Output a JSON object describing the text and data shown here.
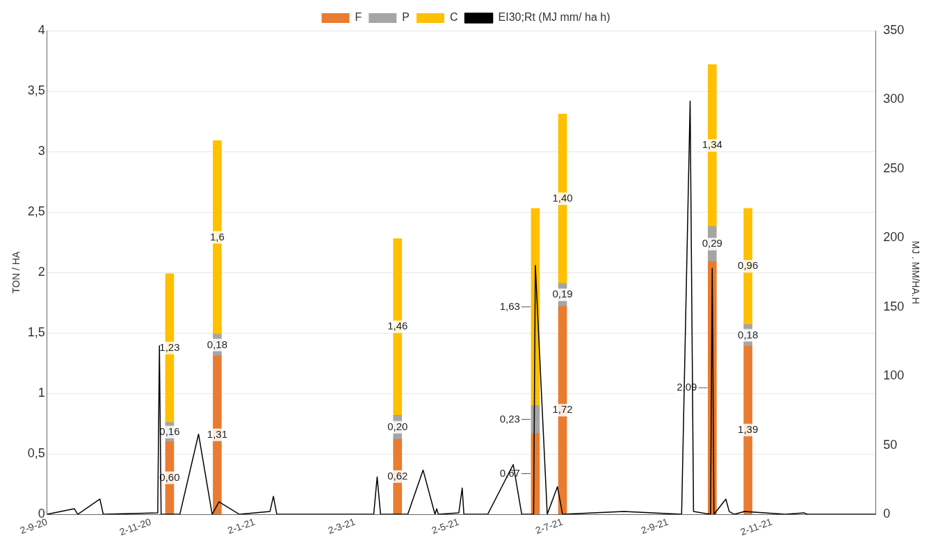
{
  "chart_data": {
    "type": "bar",
    "stacked": true,
    "xlabel": null,
    "ylabel": "TON / HA",
    "y2label": "MJ . MM/HA.H",
    "legend": "top",
    "grid": "y",
    "x": [
      "2020-11-13",
      "2020-12-11",
      "2021-03-27",
      "2021-06-16",
      "2021-07-02",
      "2021-09-28",
      "2021-10-19"
    ],
    "xlim": [
      "2020-09-02",
      "2022-01-02"
    ],
    "xticks": [
      {
        "value": "2020-09-02",
        "label": "2-9-20"
      },
      {
        "value": "2020-11-02",
        "label": "2-11-20"
      },
      {
        "value": "2021-01-02",
        "label": "2-1-21"
      },
      {
        "value": "2021-03-02",
        "label": "2-3-21"
      },
      {
        "value": "2021-05-02",
        "label": "2-5-21"
      },
      {
        "value": "2021-07-02",
        "label": "2-7-21"
      },
      {
        "value": "2021-09-02",
        "label": "2-9-21"
      },
      {
        "value": "2021-11-02",
        "label": "2-11-21"
      }
    ],
    "ylim": [
      0,
      4
    ],
    "yticks": [
      0,
      {
        "value": 0.5,
        "label": "0,5"
      },
      1,
      {
        "value": 1.5,
        "label": "1,5"
      },
      2,
      {
        "value": 2.5,
        "label": "2,5"
      },
      3,
      {
        "value": 3.5,
        "label": "3,5"
      },
      4
    ],
    "y2lim": [
      0,
      350
    ],
    "y2ticks": [
      0,
      50,
      100,
      150,
      200,
      250,
      300,
      350
    ],
    "series": [
      {
        "name": "F",
        "color": "#e97c30",
        "values": [
          0.6,
          1.31,
          0.62,
          0.67,
          1.72,
          2.09,
          1.39
        ],
        "value_labels": [
          "0,60",
          "1,31",
          "0,62",
          "0,67",
          "1,72",
          "2,09",
          "1,39"
        ]
      },
      {
        "name": "P",
        "color": "#a5a5a5",
        "values": [
          0.16,
          0.18,
          0.2,
          0.23,
          0.19,
          0.29,
          0.18
        ],
        "value_labels": [
          "0,16",
          "0,18",
          "0,20",
          "0,23",
          "0,19",
          "0,29",
          "0,18"
        ]
      },
      {
        "name": "C",
        "color": "#ffc000",
        "values": [
          1.23,
          1.6,
          1.46,
          1.63,
          1.4,
          1.34,
          0.96
        ],
        "value_labels": [
          "1,23",
          "1,6",
          "1,46",
          "1,63",
          "1,40",
          "1,34",
          "0,96"
        ]
      },
      {
        "name": "EI30;Rt (MJ mm/ ha h)",
        "type": "line",
        "axis": "y2",
        "color": "#000000",
        "line_style": "solid",
        "marker": "none",
        "x": [
          "2020-09-02",
          "2020-09-18",
          "2020-09-20",
          "2020-10-03",
          "2020-10-05",
          "2020-11-06",
          "2020-11-07",
          "2020-11-08",
          "2020-11-19",
          "2020-11-30",
          "2020-12-08",
          "2020-12-12",
          "2020-12-24",
          "2021-01-11",
          "2021-01-13",
          "2021-01-15",
          "2021-03-13",
          "2021-03-15",
          "2021-03-17",
          "2021-04-02",
          "2021-04-11",
          "2021-04-18",
          "2021-04-19",
          "2021-04-20",
          "2021-05-02",
          "2021-05-04",
          "2021-05-05",
          "2021-05-19",
          "2021-06-03",
          "2021-06-08",
          "2021-06-15",
          "2021-06-16",
          "2021-06-23",
          "2021-06-29",
          "2021-07-02",
          "2021-08-07",
          "2021-09-10",
          "2021-09-15",
          "2021-09-17",
          "2021-09-27",
          "2021-09-28",
          "2021-09-29",
          "2021-10-06",
          "2021-10-08",
          "2021-10-11",
          "2021-10-17",
          "2021-11-10",
          "2021-11-21",
          "2021-11-23",
          "2022-01-02"
        ],
        "values": [
          0,
          4,
          0,
          11,
          0,
          1,
          122,
          0,
          0,
          58,
          0,
          9,
          0,
          2,
          13,
          0,
          0,
          27,
          0,
          0,
          32,
          0,
          4,
          0,
          1,
          19,
          0,
          0,
          36,
          0,
          0,
          180,
          0,
          20,
          0,
          2,
          0,
          299,
          2,
          0,
          178,
          0,
          11,
          2,
          0,
          2,
          0,
          1,
          0,
          0
        ]
      }
    ]
  }
}
